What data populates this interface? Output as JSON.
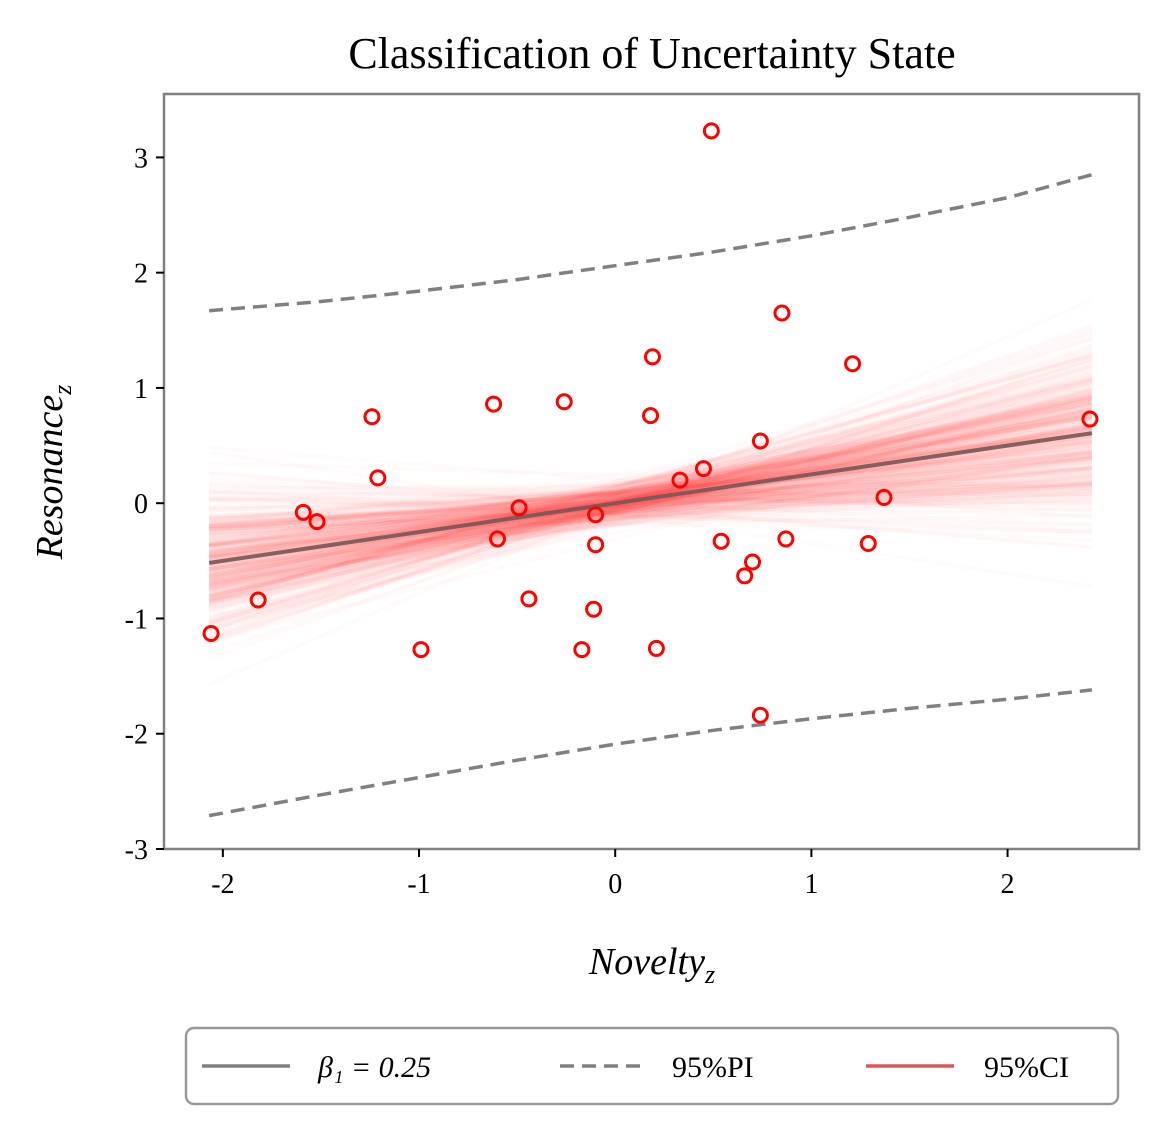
{
  "chart_data": {
    "type": "scatter",
    "title": "Classification of Uncertainty State",
    "xlabel": "Novelty",
    "xlabel_sub": "z",
    "ylabel": "Resonance",
    "ylabel_sub": "z",
    "xlim": [
      -2.3,
      2.67
    ],
    "ylim": [
      -3.0,
      3.55
    ],
    "x_ticks": [
      -2,
      -1,
      0,
      1,
      2
    ],
    "x_tick_labels": [
      "-2",
      "-1",
      "0",
      "1",
      "2"
    ],
    "y_ticks": [
      -3,
      -2,
      -1,
      0,
      1,
      2,
      3
    ],
    "y_tick_labels": [
      "-3",
      "-2",
      "-1",
      "0",
      "1",
      "2",
      "3"
    ],
    "grid": false,
    "colors": {
      "points": "#ff0000",
      "fit_line": "#7a5555",
      "pi_line": "#808080",
      "ci_band": "#ff3333",
      "legend_ci": "#e05555",
      "frame": "#808080"
    },
    "points": [
      {
        "x": -2.06,
        "y": -1.13
      },
      {
        "x": -1.82,
        "y": -0.84
      },
      {
        "x": -1.59,
        "y": -0.08
      },
      {
        "x": -1.52,
        "y": -0.16
      },
      {
        "x": -1.24,
        "y": 0.75
      },
      {
        "x": -1.21,
        "y": 0.22
      },
      {
        "x": -0.99,
        "y": -1.27
      },
      {
        "x": -0.62,
        "y": 0.86
      },
      {
        "x": -0.6,
        "y": -0.31
      },
      {
        "x": -0.49,
        "y": -0.04
      },
      {
        "x": -0.44,
        "y": -0.83
      },
      {
        "x": -0.26,
        "y": 0.88
      },
      {
        "x": -0.17,
        "y": -1.27
      },
      {
        "x": -0.1,
        "y": -0.1
      },
      {
        "x": -0.1,
        "y": -0.36
      },
      {
        "x": -0.11,
        "y": -0.92
      },
      {
        "x": 0.18,
        "y": 0.76
      },
      {
        "x": 0.19,
        "y": 1.27
      },
      {
        "x": 0.21,
        "y": -1.26
      },
      {
        "x": 0.33,
        "y": 0.2
      },
      {
        "x": 0.45,
        "y": 0.3
      },
      {
        "x": 0.49,
        "y": 3.23
      },
      {
        "x": 0.54,
        "y": -0.33
      },
      {
        "x": 0.66,
        "y": -0.63
      },
      {
        "x": 0.7,
        "y": -0.51
      },
      {
        "x": 0.74,
        "y": 0.54
      },
      {
        "x": 0.74,
        "y": -1.84
      },
      {
        "x": 0.85,
        "y": 1.65
      },
      {
        "x": 0.87,
        "y": -0.31
      },
      {
        "x": 1.21,
        "y": 1.21
      },
      {
        "x": 1.29,
        "y": -0.35
      },
      {
        "x": 1.37,
        "y": 0.05
      },
      {
        "x": 2.42,
        "y": 0.73
      }
    ],
    "fit_line": {
      "intercept": 0.0,
      "slope": 0.25,
      "x_range": [
        -2.07,
        2.43
      ]
    },
    "pi_band": {
      "x": [
        -2.07,
        -1.5,
        -1.0,
        -0.5,
        0.0,
        0.5,
        1.0,
        1.5,
        2.0,
        2.43
      ],
      "upper": [
        1.67,
        1.75,
        1.84,
        1.94,
        2.06,
        2.18,
        2.32,
        2.48,
        2.65,
        2.85
      ],
      "lower": [
        -2.71,
        -2.53,
        -2.38,
        -2.23,
        -2.09,
        -1.97,
        -1.87,
        -1.78,
        -1.7,
        -1.62
      ]
    },
    "ci_band": {
      "x_range": [
        -2.07,
        2.43
      ],
      "intercept_sd": 0.09,
      "slope_sd": 0.15,
      "draws": 400
    },
    "legend": {
      "position": "bottom-center",
      "entries": [
        {
          "label": "β₁ = 0.25",
          "style": "solid",
          "color": "#808080"
        },
        {
          "label": "95%PI",
          "style": "dashed",
          "color": "#808080"
        },
        {
          "label": "95%CI",
          "style": "solid",
          "color": "#e05555"
        }
      ]
    }
  }
}
